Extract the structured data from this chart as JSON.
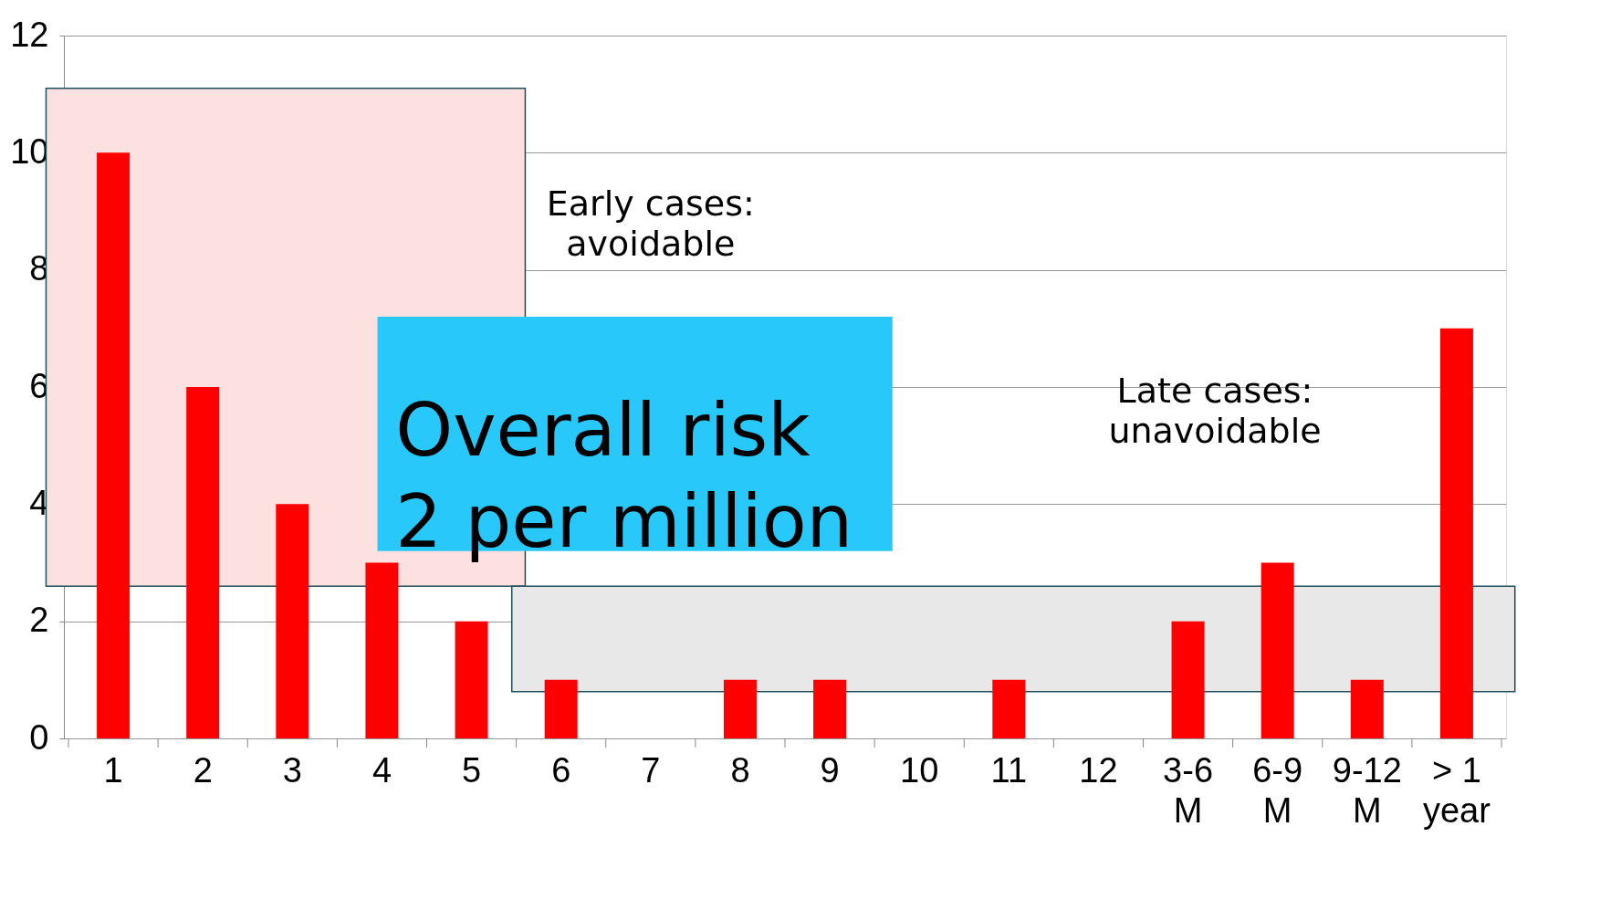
{
  "chart_data": {
    "type": "bar",
    "categories": [
      "1",
      "2",
      "3",
      "4",
      "5",
      "6",
      "7",
      "8",
      "9",
      "10",
      "11",
      "12",
      "3-6 M",
      "6-9 M",
      "9-12 M",
      "> 1 year"
    ],
    "values": [
      10,
      6,
      4,
      3,
      2,
      1,
      0,
      1,
      1,
      0,
      1,
      0,
      2,
      3,
      1,
      7
    ],
    "color": "#ff0000",
    "ylim": [
      0,
      12
    ],
    "yticks": [
      0,
      2,
      4,
      6,
      8,
      10,
      12
    ],
    "grid": "y",
    "bands": [
      {
        "axis": "y",
        "from": 2.6,
        "to": 11.1,
        "color": "#fde0e0"
      },
      {
        "axis": "y",
        "from": 0.8,
        "to": 2.6,
        "color": "#e8e8e8"
      }
    ],
    "annotations": [
      "Early cases: avoidable",
      "Late cases: unavoidable",
      "Overall risk 2 per million"
    ]
  }
}
